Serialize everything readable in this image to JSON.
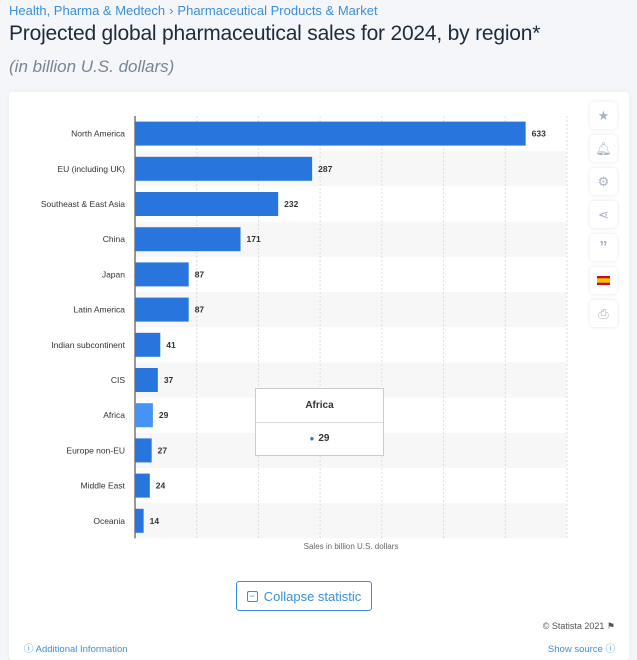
{
  "breadcrumb": [
    "Health, Pharma & Medtech",
    "›",
    "Pharmaceutical Products & Market"
  ],
  "title": "Projected global pharmaceutical sales for 2024, by region*",
  "subtitle": "(in billion U.S. dollars)",
  "tools": [
    "star-icon",
    "bell-icon",
    "gear-icon",
    "share-icon",
    "quote-icon",
    "flag-spain-icon",
    "print-icon"
  ],
  "tooltip": {
    "category": "Africa",
    "value": "29"
  },
  "collapse_label": "Collapse statistic",
  "copyright": "© Statista 2021",
  "additional_info": "Additional Information",
  "show_source": "Show source",
  "colors": {
    "bar": "#2876dd",
    "bar_hover": "#4593f5",
    "link": "#3a8fd9"
  },
  "chart_data": {
    "type": "bar",
    "orientation": "horizontal",
    "categories": [
      "North America",
      "EU (including UK)",
      "Southeast & East Asia",
      "China",
      "Japan",
      "Latin America",
      "Indian subcontinent",
      "CIS",
      "Africa",
      "Europe non-EU",
      "Middle East",
      "Oceania"
    ],
    "values": [
      633,
      287,
      232,
      171,
      87,
      87,
      41,
      37,
      29,
      27,
      24,
      14
    ],
    "xlabel": "Sales in billion U.S. dollars",
    "xlim": [
      0,
      700
    ],
    "grid": true,
    "data_labels": true,
    "highlighted": "Africa"
  }
}
